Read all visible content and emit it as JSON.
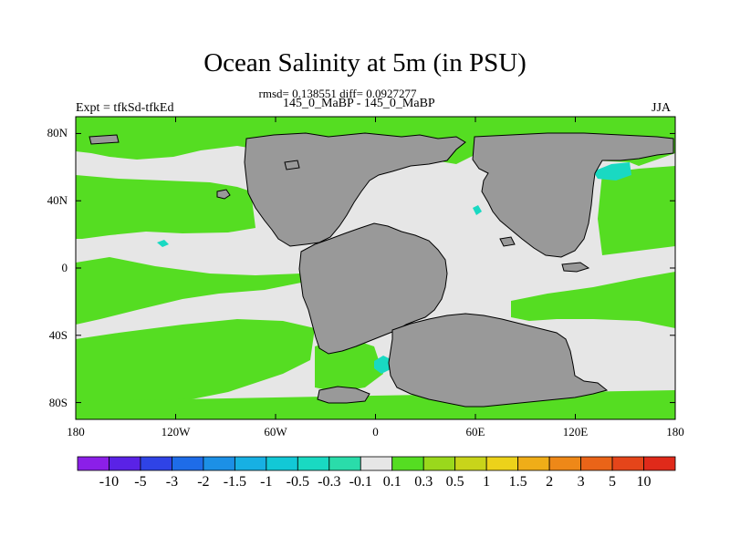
{
  "figure": {
    "title": "Ocean Salinity at 5m (in PSU)",
    "stats_line": "rmsd= 0.138551 diff= 0.0927277",
    "experiment": "Expt = tfkSd-tfkEd",
    "comparison": "145_0_MaBP - 145_0_MaBP",
    "season": "JJA"
  },
  "map": {
    "x_tick_labels": [
      "180",
      "120W",
      "60W",
      "0",
      "60E",
      "120E",
      "180"
    ],
    "y_tick_labels": [
      "80N",
      "40N",
      "0",
      "40S",
      "80S"
    ],
    "x_ticks_deg": [
      -180,
      -120,
      -60,
      0,
      60,
      120,
      180
    ],
    "y_ticks_deg": [
      80,
      40,
      0,
      -40,
      -80
    ],
    "lon_range": [
      -180,
      180
    ],
    "lat_range": [
      -90,
      90
    ],
    "land_color": "#999999",
    "neutral_color": "#e6e6e6",
    "positive_color": "#55dd22"
  },
  "colorbar": {
    "labels": [
      "-10",
      "-5",
      "-3",
      "-2",
      "-1.5",
      "-1",
      "-0.5",
      "-0.3",
      "-0.1",
      "0.1",
      "0.3",
      "0.5",
      "1",
      "1.5",
      "2",
      "3",
      "5",
      "10"
    ],
    "colors": [
      "#8b1fe8",
      "#5a22e6",
      "#2f43e6",
      "#1e6ce8",
      "#1c90e6",
      "#17b0e3",
      "#12c8d6",
      "#19d9c2",
      "#2adcaa",
      "#e6e6e6",
      "#55dd22",
      "#9ad81c",
      "#c8d41a",
      "#ecd21a",
      "#efad18",
      "#ee8818",
      "#ea6418",
      "#e5451a",
      "#e02a1a"
    ]
  }
}
